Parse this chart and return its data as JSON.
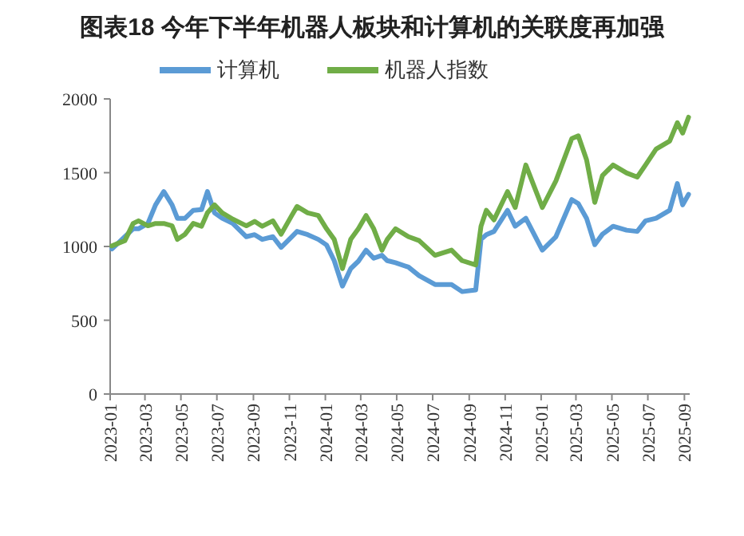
{
  "chart_data": {
    "type": "line",
    "title": "图表18 今年下半年机器人板块和计算机的关联度再加强",
    "x": [
      "2023-01-04",
      "2023-01-26",
      "2023-02-09",
      "2023-02-18",
      "2023-03-06",
      "2023-03-19",
      "2023-04-02",
      "2023-04-16",
      "2023-04-25",
      "2023-05-08",
      "2023-05-22",
      "2023-06-05",
      "2023-06-15",
      "2023-06-27",
      "2023-07-10",
      "2023-07-28",
      "2023-08-20",
      "2023-09-03",
      "2023-09-16",
      "2023-10-04",
      "2023-10-18",
      "2023-11-05",
      "2023-11-14",
      "2023-12-02",
      "2023-12-20",
      "2024-01-03",
      "2024-01-16",
      "2024-01-30",
      "2024-02-13",
      "2024-02-26",
      "2024-03-10",
      "2024-03-23",
      "2024-04-06",
      "2024-04-15",
      "2024-04-29",
      "2024-05-21",
      "2024-06-08",
      "2024-07-05",
      "2024-08-02",
      "2024-08-20",
      "2024-09-12",
      "2024-09-21",
      "2024-09-30",
      "2024-10-13",
      "2024-11-05",
      "2024-11-18",
      "2024-12-06",
      "2025-01-03",
      "2025-01-26",
      "2025-02-22",
      "2025-03-05",
      "2025-03-19",
      "2025-04-02",
      "2025-04-15",
      "2025-05-03",
      "2025-05-26",
      "2025-06-13",
      "2025-06-27",
      "2025-07-15",
      "2025-08-07",
      "2025-08-20",
      "2025-08-29",
      "2025-09-08"
    ],
    "series": [
      {
        "name": "计算机",
        "color": "#5b9bd5",
        "values": [
          983,
          1066,
          1120,
          1120,
          1156,
          1282,
          1372,
          1282,
          1191,
          1191,
          1245,
          1250,
          1372,
          1228,
          1191,
          1156,
          1066,
          1080,
          1048,
          1066,
          994,
          1066,
          1102,
          1080,
          1048,
          1010,
          904,
          731,
          850,
          900,
          975,
          920,
          940,
          904,
          890,
          860,
          802,
          742,
          742,
          694,
          705,
          1048,
          1080,
          1102,
          1245,
          1137,
          1191,
          975,
          1066,
          1318,
          1290,
          1191,
          1012,
          1083,
          1137,
          1110,
          1102,
          1174,
          1191,
          1245,
          1426,
          1282,
          1353
        ]
      },
      {
        "name": "机器人指数",
        "color": "#70ad47",
        "values": [
          1004,
          1040,
          1156,
          1174,
          1140,
          1156,
          1156,
          1140,
          1048,
          1083,
          1156,
          1137,
          1228,
          1282,
          1228,
          1185,
          1140,
          1170,
          1137,
          1174,
          1083,
          1210,
          1271,
          1228,
          1210,
          1120,
          1048,
          850,
          1048,
          1120,
          1210,
          1120,
          975,
          1048,
          1120,
          1066,
          1040,
          940,
          975,
          904,
          875,
          1137,
          1245,
          1180,
          1372,
          1264,
          1552,
          1264,
          1444,
          1731,
          1750,
          1588,
          1299,
          1480,
          1552,
          1498,
          1470,
          1552,
          1660,
          1714,
          1839,
          1768,
          1876
        ]
      }
    ],
    "xlim": [
      "2023-01-01",
      "2025-09-10"
    ],
    "xticks": [
      "2023-01",
      "2023-03",
      "2023-05",
      "2023-07",
      "2023-09",
      "2023-11",
      "2024-01",
      "2024-03",
      "2024-05",
      "2024-07",
      "2024-09",
      "2024-11",
      "2025-01",
      "2025-03",
      "2025-05",
      "2025-07",
      "2025-09"
    ],
    "ylim": [
      0,
      2000
    ],
    "yticks": [
      0,
      500,
      1000,
      1500,
      2000
    ],
    "grid": false,
    "legend": "top",
    "marker": "none",
    "line_style": "solid"
  }
}
